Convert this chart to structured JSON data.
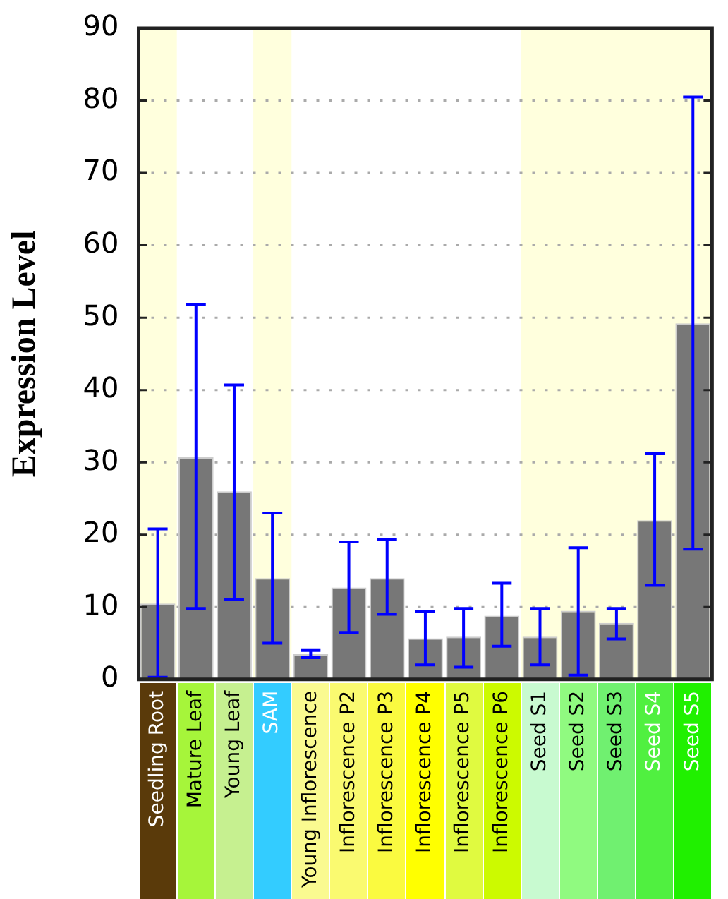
{
  "chart_data": {
    "type": "bar",
    "ylabel": "Expression Level",
    "categories": [
      "Seedling Root",
      "Mature Leaf",
      "Young Leaf",
      "SAM",
      "Young Inflorescence",
      "Inflorescence P2",
      "Inflorescence P3",
      "Inflorescence P4",
      "Inflorescence P5",
      "Inflorescence P6",
      "Seed S1",
      "Seed S2",
      "Seed S3",
      "Seed S4",
      "Seed S5"
    ],
    "values": [
      10.5,
      30.7,
      26,
      14,
      3.5,
      12.7,
      14,
      5.7,
      5.9,
      8.8,
      5.9,
      9.5,
      7.8,
      22,
      49.2
    ],
    "color": "#777777",
    "errors": [
      [
        0.3,
        20.8
      ],
      [
        9.8,
        51.8
      ],
      [
        11.1,
        40.7
      ],
      [
        5,
        23
      ],
      [
        3,
        4
      ],
      [
        6.5,
        19
      ],
      [
        9,
        19.3
      ],
      [
        2,
        9.4
      ],
      [
        1.7,
        9.8
      ],
      [
        4.6,
        13.3
      ],
      [
        2,
        9.8
      ],
      [
        0.6,
        18.2
      ],
      [
        5.6,
        9.8
      ],
      [
        13,
        31.2
      ],
      [
        18,
        80.5
      ]
    ],
    "ylim": [
      0,
      90
    ],
    "yticks": [
      0,
      10,
      20,
      30,
      40,
      50,
      60,
      70,
      80,
      90
    ],
    "grid": "y",
    "bands": [
      {
        "axis": "x",
        "from": "Seedling Root",
        "to": "Seedling Root",
        "color": "#ffffdd"
      },
      {
        "axis": "x",
        "from": "SAM",
        "to": "SAM",
        "color": "#ffffdd"
      },
      {
        "axis": "x",
        "from": "Seed S1",
        "to": "Seed S5",
        "color": "#ffffdd"
      }
    ]
  }
}
